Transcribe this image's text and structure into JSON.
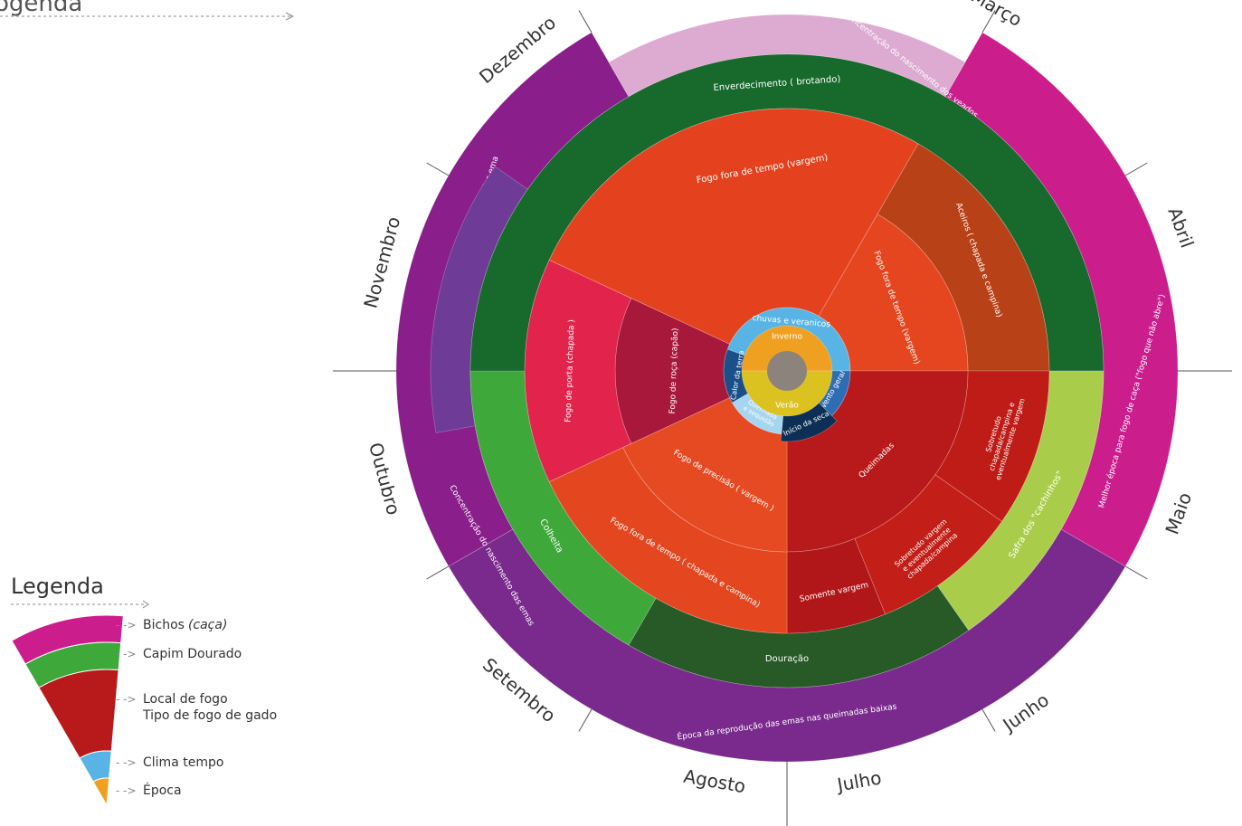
{
  "header_fragment": "ogenda",
  "center_color": "#8c847c",
  "months": [
    {
      "id": "marco",
      "label": "Março"
    },
    {
      "id": "abril",
      "label": "Abril"
    },
    {
      "id": "maio",
      "label": "Maio"
    },
    {
      "id": "junho",
      "label": "Junho"
    },
    {
      "id": "julho",
      "label": "Julho"
    },
    {
      "id": "agosto",
      "label": "Agosto"
    },
    {
      "id": "setembro",
      "label": "Setembro"
    },
    {
      "id": "outubro",
      "label": "Outubro"
    },
    {
      "id": "novembro",
      "label": "Novembro"
    },
    {
      "id": "dezembro",
      "label": "Dezembro"
    }
  ],
  "rings": {
    "bichos": [
      {
        "id": "criacao-emas",
        "label": "Época de criação das ema",
        "color": "#8a1e8a"
      },
      {
        "id": "nascimento-veados",
        "label": "Concentração do nascimento dos veados",
        "color": "#ddaad2"
      },
      {
        "id": "fogo-caca",
        "label": "Melhor época para fogo de caça (\"fogo que não abre\")",
        "color": "#cc1d8d"
      },
      {
        "id": "reproducao-emas",
        "label": "Época da reprodução das emas nas queimadas baixas",
        "color": "#7a2a8c"
      },
      {
        "id": "nascimento-emas",
        "label": "Concentração do nascimento das emas",
        "color": "#6e3b96"
      }
    ],
    "capim": [
      {
        "id": "enverdecimento",
        "label": "Enverdecimento ( brotando)",
        "color": "#17692c"
      },
      {
        "id": "safra",
        "label": "Safra dos \"cachinhos\"",
        "color": "#a9cd4a"
      },
      {
        "id": "douracao",
        "label": "Douração",
        "color": "#285a27"
      },
      {
        "id": "colheita",
        "label": "Colheita",
        "color": "#3ea83a"
      }
    ],
    "fogo": [
      {
        "id": "fogo-fora-vargem",
        "label": "Fogo fora de tempo (vargem)",
        "color": "#e4421f"
      },
      {
        "id": "aceiros",
        "label": "Aceiros ( chapada e campina)",
        "color": "#b94118"
      },
      {
        "id": "fogo-fora-vargem-2",
        "label": "Fogo fora de tempo (vargem)",
        "color": "#e5461f"
      },
      {
        "id": "sobretudo-chapada",
        "label": "Sobretudo chapada/campina e eventualmente vargem",
        "color": "#bf1c17"
      },
      {
        "id": "queimadas",
        "label": "Queimadas",
        "color": "#b8191a"
      },
      {
        "id": "sobretudo-vargem",
        "label": "Sobretudo vargem e eventualmente chapada/campina",
        "color": "#c31e17"
      },
      {
        "id": "somente-vargem",
        "label": "Somente vargem",
        "color": "#b11718"
      },
      {
        "id": "fogo-fora-chapada",
        "label": "Fogo fora de tempo ( chapada e campina)",
        "color": "#e4471f"
      },
      {
        "id": "fogo-precisao",
        "label": "Fogo de precisão ( vargem )",
        "color": "#e54a22"
      },
      {
        "id": "fogo-roca",
        "label": "Fogo de roça (capão)",
        "color": "#a8183a"
      },
      {
        "id": "fogo-porta",
        "label": "Fogo de porta (chapada )",
        "color": "#e2244c"
      }
    ],
    "clima": [
      {
        "id": "chuvas",
        "label": "chuvas e veranicos",
        "color": "#58b4e4"
      },
      {
        "id": "vento-geral",
        "label": "Vento geral",
        "color": "#2e6cb4"
      },
      {
        "id": "inicio-seca",
        "label": "Início da seca",
        "color": "#0e2f55"
      },
      {
        "id": "queimadas-sequidao",
        "label": "Queimada e sequidão",
        "color": "#a6d5f0"
      },
      {
        "id": "calor-terra",
        "label": "Calor da terra",
        "color": "#1a4f8a"
      }
    ],
    "epoca": [
      {
        "id": "inverno",
        "label": "Inverno",
        "color": "#f0a020"
      },
      {
        "id": "verao",
        "label": "Verão",
        "color": "#dcc220"
      }
    ]
  },
  "legend": {
    "title": "Legenda",
    "items": [
      {
        "id": "bichos",
        "label": "Bichos",
        "note": "(caça)",
        "color": "#cc1d8d"
      },
      {
        "id": "capim",
        "label": "Capim Dourado",
        "color": "#3ea83a"
      },
      {
        "id": "fogo",
        "label": "Local de fogo",
        "label2": "Tipo de fogo de gado",
        "color": "#b8191a"
      },
      {
        "id": "clima",
        "label": "Clima tempo",
        "color": "#58b4e4"
      },
      {
        "id": "epoca",
        "label": "Época",
        "color": "#f0a020"
      }
    ]
  }
}
